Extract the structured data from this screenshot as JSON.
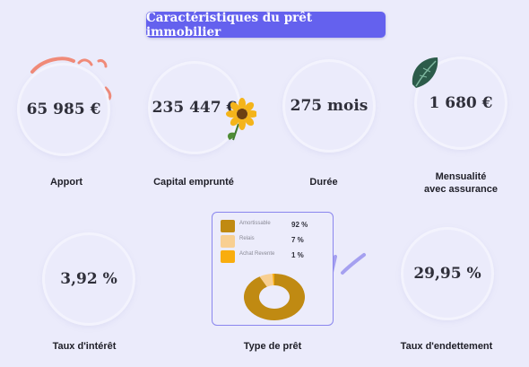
{
  "title": "Caractéristiques du prêt immobilier",
  "metrics": [
    {
      "value": "65 985 €",
      "label": "Apport"
    },
    {
      "value": "235 447 €",
      "label": "Capital emprunté"
    },
    {
      "value": "275 mois",
      "label": "Durée"
    },
    {
      "value": "1 680 €",
      "label": "Mensualité\navec assurance"
    },
    {
      "value": "3,92 %",
      "label": "Taux d'intérêt"
    },
    {
      "value": "29,95 %",
      "label": "Taux d'endettement"
    }
  ],
  "loan_type": {
    "label": "Type de prêt",
    "legend": [
      {
        "name": "Amortissable",
        "value": "92 %",
        "color": "#c08a12"
      },
      {
        "name": "Relais",
        "value": "7 %",
        "color": "#f8cf91"
      },
      {
        "name": "Achat Revente",
        "value": "1 %",
        "color": "#f9ad0e"
      }
    ]
  },
  "chart_data": {
    "type": "pie",
    "categories": [
      "Amortissable",
      "Relais",
      "Achat Revente"
    ],
    "values": [
      92,
      7,
      1
    ],
    "colors": [
      "#c08a12",
      "#f8cf91",
      "#f9ad0e"
    ]
  }
}
